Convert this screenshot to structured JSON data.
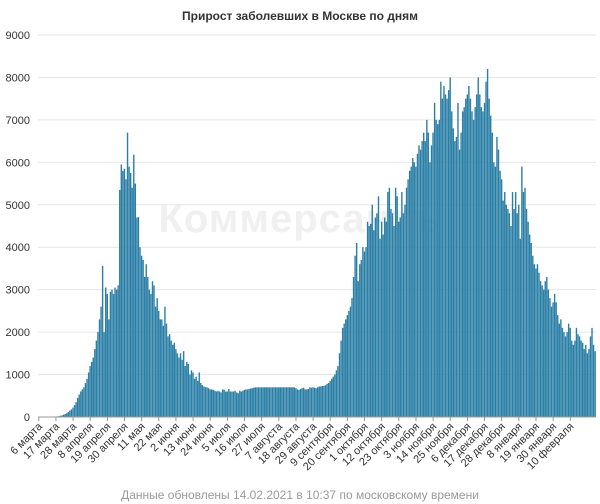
{
  "title": "Прирост заболевших в Москве по дням",
  "footer": "Данные обновлены 14.02.2021 в 10:37 по московскому времени",
  "watermark": "Коммерсантъ",
  "colors": {
    "bar": "#2b7fa6",
    "bar_edge": "#1c5f80",
    "text": "#333333",
    "footer": "#9a9a9a"
  },
  "chart_data": {
    "type": "bar",
    "title": "Прирост заболевших в Москве по дням",
    "xlabel": "",
    "ylabel": "",
    "ylim": [
      0,
      9000
    ],
    "yticks": [
      0,
      1000,
      2000,
      3000,
      4000,
      5000,
      6000,
      7000,
      8000,
      9000
    ],
    "grid": true,
    "legend": "none",
    "x_start": "6 марта 2020",
    "x_end": "13 февраля 2021",
    "x_ticks": [
      "6 марта",
      "17 марта",
      "28 марта",
      "8 апреля",
      "19 апреля",
      "30 апреля",
      "11 мая",
      "22 мая",
      "2 июня",
      "13 июня",
      "24 июня",
      "5 июля",
      "16 июля",
      "27 июля",
      "7 августа",
      "18 августа",
      "29 августа",
      "9 сентября",
      "20 сентября",
      "1 октября",
      "12 октября",
      "23 октября",
      "3 ноября",
      "14 ноября",
      "25 ноября",
      "6 декабря",
      "17 декабря",
      "28 декабря",
      "8 января",
      "19 января",
      "30 января",
      "10 февраля"
    ],
    "values": [
      0,
      0,
      0,
      0,
      0,
      0,
      0,
      0,
      0,
      0,
      5,
      10,
      15,
      20,
      30,
      40,
      55,
      70,
      90,
      120,
      150,
      180,
      220,
      280,
      350,
      450,
      530,
      600,
      650,
      700,
      800,
      900,
      1050,
      1200,
      1300,
      1400,
      1600,
      1800,
      2000,
      2300,
      2600,
      3560,
      2000,
      3050,
      2900,
      2300,
      2950,
      3000,
      2900,
      3050,
      3000,
      3100,
      5350,
      5950,
      5800,
      5850,
      5600,
      6700,
      5900,
      5750,
      5400,
      6180,
      5500,
      4700,
      4710,
      4000,
      3800,
      3700,
      3300,
      3600,
      3300,
      3000,
      2900,
      3200,
      3100,
      2600,
      2800,
      2500,
      2300,
      2300,
      2150,
      2600,
      2200,
      1900,
      1950,
      1800,
      1700,
      1750,
      1600,
      1500,
      1400,
      1500,
      1350,
      1550,
      1200,
      1300,
      1250,
      1000,
      1100,
      1050,
      900,
      950,
      850,
      1050,
      800,
      750,
      720,
      700,
      700,
      680,
      650,
      650,
      640,
      620,
      600,
      620,
      600,
      580,
      650,
      640,
      600,
      600,
      660,
      600,
      600,
      600,
      620,
      580,
      560,
      620,
      600,
      620,
      640,
      650,
      650,
      660,
      670,
      680,
      690,
      700,
      700,
      700,
      700,
      700,
      700,
      700,
      700,
      700,
      700,
      700,
      700,
      700,
      700,
      700,
      700,
      700,
      700,
      700,
      700,
      700,
      700,
      700,
      700,
      700,
      700,
      680,
      650,
      640,
      660,
      680,
      690,
      650,
      650,
      660,
      700,
      690,
      700,
      690,
      680,
      700,
      720,
      720,
      730,
      730,
      750,
      780,
      800,
      850,
      900,
      950,
      1000,
      1100,
      1200,
      1500,
      1800,
      2100,
      2200,
      2300,
      2400,
      2500,
      2600,
      2800,
      3300,
      3800,
      4100,
      3200,
      3600,
      3700,
      4000,
      3900,
      4000,
      4600,
      4500,
      4550,
      5000,
      4400,
      4700,
      4800,
      5200,
      4200,
      4600,
      4300,
      4700,
      4600,
      5300,
      5400,
      4900,
      4800,
      4500,
      5400,
      5200,
      4600,
      4700,
      5300,
      4800,
      5000,
      5400,
      5600,
      5800,
      5900,
      6100,
      6000,
      5900,
      6200,
      6400,
      6300,
      6500,
      6700,
      6500,
      7000,
      6700,
      6000,
      6400,
      6700,
      7400,
      7000,
      6900,
      7000,
      7900,
      7500,
      7800,
      7600,
      7500,
      7700,
      8000,
      7200,
      6800,
      6500,
      6600,
      7400,
      6300,
      6700,
      7200,
      7300,
      7500,
      7600,
      7800,
      7500,
      7200,
      7000,
      7300,
      7600,
      8000,
      7600,
      7300,
      7200,
      7400,
      7900,
      8200,
      7500,
      7100,
      6700,
      6000,
      5900,
      6600,
      6300,
      5800,
      5600,
      5100,
      5300,
      5000,
      4900,
      4800,
      4500,
      5300,
      4900,
      5300,
      4800,
      5000,
      4200,
      5900,
      5300,
      5400,
      4900,
      4600,
      4300,
      4100,
      3800,
      3600,
      3500,
      3600,
      3400,
      3200,
      3100,
      3000,
      3200,
      3300,
      3000,
      2800,
      2600,
      2700,
      2900,
      2700,
      2400,
      2200,
      2300,
      2100,
      2000,
      1900,
      2000,
      2200,
      2100,
      1800,
      1700,
      1800,
      2100,
      1950,
      1900,
      1800,
      1750,
      1600,
      1700,
      1500,
      1600,
      1900,
      2100,
      1700,
      1550
    ]
  }
}
